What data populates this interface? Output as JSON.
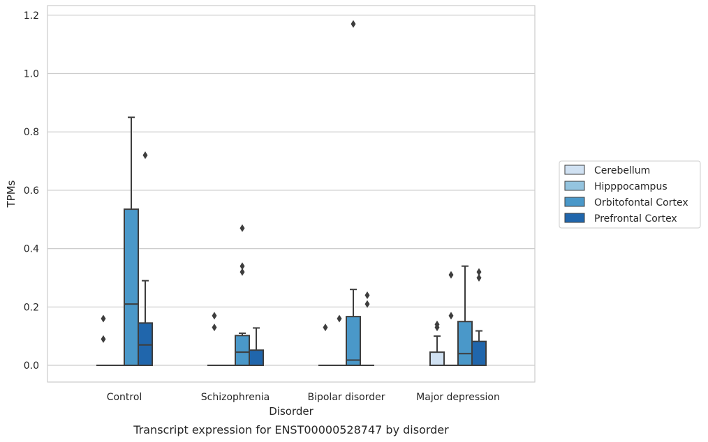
{
  "chart_data": {
    "type": "box",
    "title": "",
    "caption": "Transcript expression for ENST00000528747 by disorder",
    "xlabel": "Disorder",
    "ylabel": "TPMs",
    "ylim": [
      -0.06,
      1.23
    ],
    "yticks": [
      0.0,
      0.2,
      0.4,
      0.6,
      0.8,
      1.0,
      1.2
    ],
    "ytick_labels": [
      "0.0",
      "0.2",
      "0.4",
      "0.6",
      "0.8",
      "1.0",
      "1.2"
    ],
    "grid": "horizontal",
    "legend_position": "right",
    "categories": [
      "Control",
      "Schizophrenia",
      "Bipolar disorder",
      "Major depression"
    ],
    "series": [
      {
        "name": "Cerebellum",
        "color": "#d0e1f2",
        "boxes": [
          {
            "q1": 0,
            "median": 0,
            "q3": 0,
            "whisker_low": 0,
            "whisker_high": 0,
            "outliers": [
              0.09,
              0.16
            ]
          },
          {
            "q1": 0,
            "median": 0,
            "q3": 0,
            "whisker_low": 0,
            "whisker_high": 0,
            "outliers": [
              0.13,
              0.17
            ]
          },
          {
            "q1": 0,
            "median": 0,
            "q3": 0,
            "whisker_low": 0,
            "whisker_high": 0,
            "outliers": [
              0.13
            ]
          },
          {
            "q1": 0,
            "median": 0,
            "q3": 0.045,
            "whisker_low": 0,
            "whisker_high": 0.1,
            "outliers": [
              0.13,
              0.14
            ]
          }
        ]
      },
      {
        "name": "Hipppocampus",
        "color": "#94c4df",
        "boxes": [
          {
            "q1": 0,
            "median": 0,
            "q3": 0,
            "whisker_low": 0,
            "whisker_high": 0,
            "outliers": []
          },
          {
            "q1": 0,
            "median": 0,
            "q3": 0,
            "whisker_low": 0,
            "whisker_high": 0,
            "outliers": []
          },
          {
            "q1": 0,
            "median": 0,
            "q3": 0,
            "whisker_low": 0,
            "whisker_high": 0,
            "outliers": [
              0.16
            ]
          },
          {
            "q1": 0,
            "median": 0,
            "q3": 0,
            "whisker_low": 0,
            "whisker_high": 0,
            "outliers": [
              0.17,
              0.31
            ]
          }
        ]
      },
      {
        "name": "Orbitofontal Cortex",
        "color": "#4a98c9",
        "boxes": [
          {
            "q1": 0,
            "median": 0.21,
            "q3": 0.535,
            "whisker_low": 0,
            "whisker_high": 0.85,
            "outliers": []
          },
          {
            "q1": 0,
            "median": 0.045,
            "q3": 0.102,
            "whisker_low": 0,
            "whisker_high": 0.11,
            "outliers": [
              0.32,
              0.34,
              0.47
            ]
          },
          {
            "q1": 0,
            "median": 0.018,
            "q3": 0.167,
            "whisker_low": 0,
            "whisker_high": 0.26,
            "outliers": [
              1.17
            ]
          },
          {
            "q1": 0,
            "median": 0.04,
            "q3": 0.15,
            "whisker_low": 0,
            "whisker_high": 0.34,
            "outliers": []
          }
        ]
      },
      {
        "name": "Prefrontal Cortex",
        "color": "#2066ac",
        "boxes": [
          {
            "q1": 0,
            "median": 0.07,
            "q3": 0.145,
            "whisker_low": 0,
            "whisker_high": 0.29,
            "outliers": [
              0.72
            ]
          },
          {
            "q1": 0,
            "median": 0,
            "q3": 0.052,
            "whisker_low": 0,
            "whisker_high": 0.128,
            "outliers": []
          },
          {
            "q1": 0,
            "median": 0,
            "q3": 0,
            "whisker_low": 0,
            "whisker_high": 0,
            "outliers": [
              0.21,
              0.24
            ]
          },
          {
            "q1": 0,
            "median": 0,
            "q3": 0.082,
            "whisker_low": 0,
            "whisker_high": 0.118,
            "outliers": [
              0.3,
              0.32
            ]
          }
        ]
      }
    ]
  }
}
